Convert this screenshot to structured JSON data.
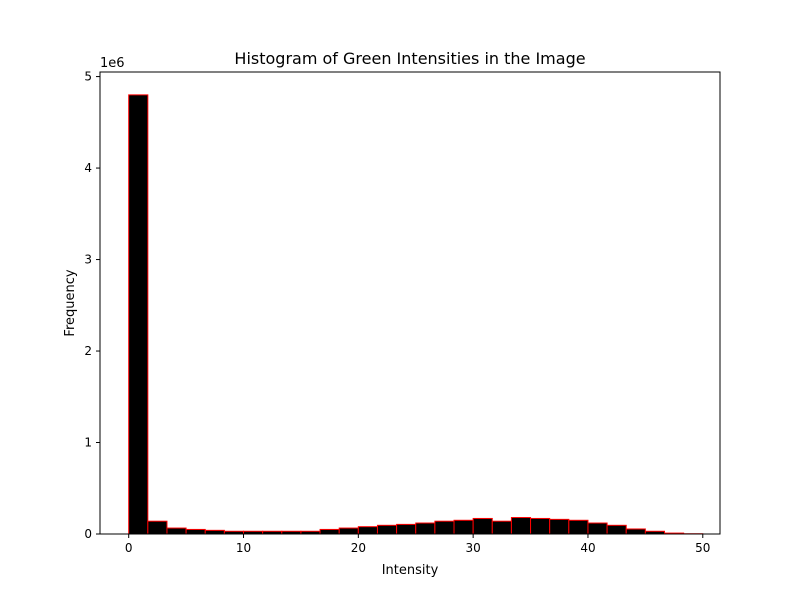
{
  "chart_data": {
    "type": "bar",
    "title": "Histogram of Green Intensities in the Image",
    "xlabel": "Intensity",
    "ylabel": "Frequency",
    "y_offset_label": "1e6",
    "xlim": [
      -2.5,
      51.5
    ],
    "ylim": [
      0,
      5050000
    ],
    "xticks": [
      0,
      10,
      20,
      30,
      40,
      50
    ],
    "yticks": [
      0,
      1,
      2,
      3,
      4,
      5
    ],
    "bin_edges": [
      0,
      1.6667,
      3.3333,
      5,
      6.6667,
      8.3333,
      10,
      11.6667,
      13.3333,
      15,
      16.6667,
      18.3333,
      20,
      21.6667,
      23.3333,
      25,
      26.6667,
      28.3333,
      30,
      31.6667,
      33.3333,
      35,
      36.6667,
      38.3333,
      40,
      41.6667,
      43.3333,
      45,
      46.6667,
      48.3333,
      50
    ],
    "values": [
      4800000,
      140000,
      65000,
      50000,
      40000,
      30000,
      30000,
      30000,
      30000,
      30000,
      50000,
      65000,
      80000,
      95000,
      105000,
      120000,
      140000,
      150000,
      170000,
      140000,
      180000,
      170000,
      160000,
      150000,
      120000,
      95000,
      55000,
      30000,
      10000,
      3000
    ],
    "bar_color": "#000000",
    "edge_color": "#ff0000",
    "grid": false,
    "legend": "none"
  }
}
